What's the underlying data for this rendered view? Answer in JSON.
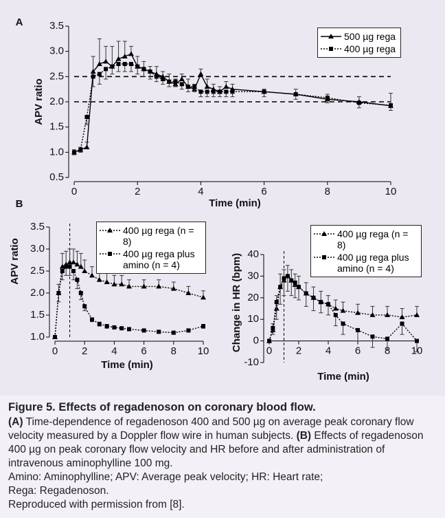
{
  "chart_data": [
    {
      "type": "line",
      "panel_label": "A",
      "ylabel": "APV ratio",
      "xlabel": "Time (min)",
      "x": [
        0,
        0.2,
        0.4,
        0.6,
        0.8,
        1.0,
        1.2,
        1.4,
        1.6,
        1.8,
        2.0,
        2.2,
        2.4,
        2.6,
        2.8,
        3.0,
        3.2,
        3.4,
        3.6,
        3.8,
        4.0,
        4.2,
        4.4,
        4.6,
        4.8,
        5,
        6,
        7,
        8,
        9,
        10
      ],
      "xlim": [
        0,
        10
      ],
      "xticks": [
        0,
        2,
        4,
        6,
        8,
        10
      ],
      "ylim": [
        0.5,
        3.5
      ],
      "yticks": [
        0.5,
        {
          "value": 1,
          "label": "1.0"
        },
        1.5,
        {
          "value": 2,
          "label": "2.0"
        },
        2.5,
        {
          "value": 3,
          "label": "3.0"
        },
        3.5
      ],
      "reference_lines": [
        2.5,
        2.0
      ],
      "legend": "upper right",
      "series": [
        {
          "name": "500 µg rega",
          "color": "#000000",
          "marker": "triangle",
          "line_style": "solid",
          "error_side": "up",
          "values": [
            1.0,
            1.05,
            1.1,
            2.6,
            2.75,
            2.8,
            2.7,
            2.85,
            2.9,
            2.95,
            2.7,
            2.65,
            2.6,
            2.55,
            2.5,
            2.4,
            2.35,
            2.45,
            2.3,
            2.25,
            2.55,
            2.3,
            2.25,
            2.2,
            2.3,
            2.25,
            2.2,
            2.15,
            2.05,
            2.0,
            1.92
          ],
          "errors": [
            0.05,
            0.05,
            0.1,
            0.3,
            0.5,
            0.3,
            0.4,
            0.35,
            0.3,
            0.15,
            0.2,
            0.15,
            0.1,
            0.15,
            0.1,
            0.15,
            0.1,
            0.1,
            0.15,
            0.1,
            0.1,
            0.15,
            0.1,
            0.1,
            0.1,
            0.1,
            0.05,
            0.1,
            0.1,
            0.1,
            0.25
          ]
        },
        {
          "name": "400 µg rega",
          "color": "#000000",
          "marker": "square",
          "line_style": "dotted",
          "error_side": "down",
          "values": [
            1.0,
            1.05,
            1.7,
            2.5,
            2.55,
            2.65,
            2.7,
            2.75,
            2.75,
            2.75,
            2.7,
            2.65,
            2.6,
            2.5,
            2.45,
            2.4,
            2.4,
            2.35,
            2.3,
            2.3,
            2.2,
            2.2,
            2.2,
            2.2,
            2.2,
            2.2,
            2.2,
            2.15,
            2.08,
            1.98,
            1.93
          ],
          "errors": [
            0.05,
            0.05,
            0.15,
            0.2,
            0.2,
            0.2,
            0.15,
            0.15,
            0.15,
            0.15,
            0.15,
            0.15,
            0.15,
            0.1,
            0.1,
            0.1,
            0.1,
            0.1,
            0.1,
            0.1,
            0.1,
            0.1,
            0.1,
            0.1,
            0.1,
            0.1,
            0.1,
            0.1,
            0.1,
            0.1,
            0.1
          ]
        }
      ]
    },
    {
      "type": "line",
      "panel_label": "B",
      "ylabel": "APV ratio",
      "xlabel": "Time (min)",
      "x": [
        0,
        0.25,
        0.5,
        0.75,
        1,
        1.25,
        1.5,
        1.75,
        2,
        2.5,
        3,
        3.5,
        4,
        4.5,
        5,
        6,
        7,
        8,
        9,
        10
      ],
      "xlim": [
        0,
        10
      ],
      "xticks": [
        0,
        2,
        4,
        6,
        8,
        10
      ],
      "ylim": [
        1.0,
        3.5
      ],
      "yticks": [
        {
          "value": 1,
          "label": "1.0"
        },
        1.5,
        {
          "value": 2,
          "label": "2.0"
        },
        2.5,
        {
          "value": 3,
          "label": "3.0"
        },
        3.5
      ],
      "vertical_lines": [
        1
      ],
      "legend": "upper right",
      "series": [
        {
          "name": "400 µg rega (n = 8)",
          "color": "#000000",
          "marker": "triangle",
          "line_style": "dotted",
          "error_side": "up",
          "values": [
            1.0,
            2.0,
            2.6,
            2.65,
            2.7,
            2.7,
            2.65,
            2.6,
            2.5,
            2.4,
            2.3,
            2.25,
            2.2,
            2.2,
            2.15,
            2.15,
            2.15,
            2.1,
            2.0,
            1.9
          ],
          "errors": [
            0,
            0.2,
            0.3,
            0.3,
            0.3,
            0.3,
            0.3,
            0.3,
            0.25,
            0.2,
            0.2,
            0.2,
            0.2,
            0.2,
            0.15,
            0.15,
            0.15,
            0.15,
            0.15,
            0.15
          ]
        },
        {
          "name": "400 µg rega plus amino (n = 4)",
          "color": "#000000",
          "marker": "square",
          "line_style": "dotted",
          "error_side": "down",
          "values": [
            1.0,
            2.0,
            2.5,
            2.6,
            2.6,
            2.5,
            2.3,
            2.0,
            1.7,
            1.4,
            1.3,
            1.25,
            1.22,
            1.2,
            1.18,
            1.15,
            1.12,
            1.1,
            1.15,
            1.25
          ],
          "errors": [
            0,
            0.2,
            0.2,
            0.2,
            0.2,
            0.2,
            0.2,
            0.15,
            0.1,
            0.05,
            0.05,
            0.05,
            0.03,
            0.03,
            0.03,
            0.03,
            0.03,
            0.03,
            0.03,
            0.05
          ]
        }
      ]
    },
    {
      "type": "line",
      "ylabel": "Change in HR (bpm)",
      "xlabel": "Time (min)",
      "x": [
        0,
        0.25,
        0.5,
        0.75,
        1,
        1.25,
        1.5,
        1.75,
        2,
        2.5,
        3,
        3.5,
        4,
        4.5,
        5,
        6,
        7,
        8,
        9,
        10
      ],
      "xlim": [
        0,
        10
      ],
      "xticks": [
        0,
        2,
        4,
        6,
        8,
        10
      ],
      "ylim": [
        -10,
        40
      ],
      "yticks": [
        -10,
        0,
        10,
        20,
        30,
        40
      ],
      "vertical_lines": [
        1
      ],
      "legend": "upper right",
      "series": [
        {
          "name": "400 µg rega (n = 8)",
          "color": "#000000",
          "marker": "triangle",
          "line_style": "dotted",
          "error_side": "up",
          "values": [
            0,
            5,
            15,
            25,
            28,
            30,
            28,
            26,
            25,
            22,
            20,
            18,
            17,
            15,
            14,
            13,
            12,
            12,
            11,
            12
          ],
          "errors": [
            0,
            3,
            6,
            6,
            5,
            5,
            5,
            5,
            5,
            5,
            5,
            5,
            4,
            4,
            4,
            4,
            4,
            4,
            4,
            4
          ]
        },
        {
          "name": "400 µg rega plus amino (n = 4)",
          "color": "#000000",
          "marker": "square",
          "line_style": "dotted",
          "error_side": "down",
          "values": [
            0,
            6,
            18,
            25,
            29,
            30,
            28,
            27,
            25,
            22,
            20,
            18,
            17,
            12,
            8,
            5,
            2,
            1,
            8,
            0
          ],
          "errors": [
            0,
            3,
            8,
            8,
            8,
            7,
            7,
            7,
            6,
            6,
            6,
            5,
            5,
            5,
            5,
            5,
            5,
            5,
            5,
            5
          ]
        }
      ]
    }
  ],
  "caption": {
    "title": "Figure 5. Effects of regadenoson on coronary blood flow.",
    "label_a": "(A)",
    "text_a": "Time-dependence of regadenoson 400 and 500 µg on average peak coronary flow velocity measured by a Doppler flow wire in human subjects.",
    "label_b": "(B)",
    "text_b": "Effects of regadenoson 400 µg on peak coronary flow velocity and HR before and after administration of intravenous aminophylline 100 mg.",
    "abbreviations": "Amino: Aminophylline; APV: Average peak velocity; HR: Heart rate;",
    "abbreviations_2": "Rega: Regadenoson.",
    "credit": "Reproduced with permission from",
    "reference": "[8]."
  }
}
